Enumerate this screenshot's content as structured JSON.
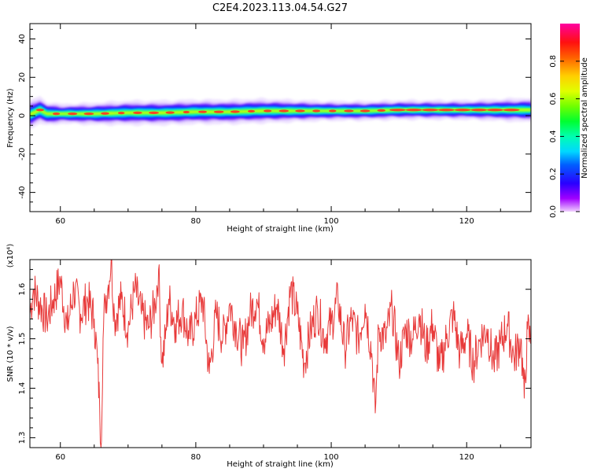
{
  "title": "C2E4.2023.113.04.54.G27",
  "chart_data": [
    {
      "type": "heatmap",
      "xlabel": "Height of straight line (km)",
      "ylabel": "Frequency (Hz)",
      "xlim": [
        55.5,
        129.5
      ],
      "ylim": [
        -50,
        48
      ],
      "xticks": [
        "60",
        "80",
        "100",
        "120"
      ],
      "yticks": [
        "40",
        "20",
        "0",
        "-20",
        "-40"
      ],
      "xtick_values": [
        60,
        80,
        100,
        120
      ],
      "ytick_values": [
        40,
        20,
        0,
        -20,
        -40
      ],
      "colorbar": {
        "label": "Normalized spectral amplitude",
        "range": [
          0,
          1
        ],
        "ticks": [
          "0.0",
          "0.2",
          "0.4",
          "0.6",
          "0.8"
        ],
        "tick_values": [
          0,
          0.2,
          0.4,
          0.6,
          0.8
        ]
      },
      "ridge_center": {
        "x": [
          55.5,
          57,
          58,
          59,
          60,
          65,
          70,
          75,
          80,
          85,
          90,
          95,
          100,
          105,
          110,
          115,
          120,
          125,
          129.5
        ],
        "y": [
          0.5,
          3,
          1,
          1,
          1,
          1,
          1.5,
          1.5,
          2,
          2,
          2.5,
          2.5,
          2.5,
          2.5,
          3,
          3,
          3,
          3,
          3
        ]
      },
      "ridge_halfwidth": {
        "x": [
          55.5,
          60,
          70,
          80,
          90,
          100,
          110,
          120,
          129.5
        ],
        "y": [
          3,
          2,
          2.5,
          2.5,
          2.5,
          2,
          2,
          2,
          2.5
        ]
      }
    },
    {
      "type": "line",
      "xlabel": "Height of straight line (km)",
      "ylabel": "SNR (10 * v/v)",
      "y_multiplier": "(x10⁴)",
      "xlim": [
        55.5,
        129.5
      ],
      "ylim": [
        1.28,
        1.66
      ],
      "xticks": [
        "60",
        "80",
        "100",
        "120"
      ],
      "yticks": [
        "1.3",
        "1.4",
        "1.5",
        "1.6"
      ],
      "xtick_values": [
        60,
        80,
        100,
        120
      ],
      "ytick_values": [
        1.3,
        1.4,
        1.5,
        1.6
      ],
      "line_color": "#e83a3a",
      "series": [
        {
          "x": [
            55.5,
            56,
            57,
            58,
            59,
            60,
            61,
            62,
            63,
            64,
            65,
            65.5,
            65.8,
            66,
            66.3,
            66.6,
            67,
            67.5,
            68,
            69,
            70,
            71,
            72,
            73,
            74,
            74.5,
            75,
            75.5,
            76,
            77,
            78,
            79,
            80,
            81,
            82,
            83,
            84,
            85,
            86,
            87,
            88,
            89,
            90,
            91,
            92,
            93,
            94,
            95,
            96,
            97,
            98,
            99,
            100,
            101,
            102,
            103,
            104,
            105,
            106,
            106.5,
            107,
            108,
            109,
            110,
            111,
            112,
            113,
            114,
            115,
            116,
            117,
            118,
            119,
            120,
            121,
            122,
            123,
            124,
            125,
            126,
            127,
            128,
            128.5,
            129,
            129.5
          ],
          "y": [
            1.55,
            1.6,
            1.57,
            1.54,
            1.58,
            1.62,
            1.52,
            1.6,
            1.55,
            1.58,
            1.54,
            1.45,
            1.36,
            1.28,
            1.5,
            1.58,
            1.6,
            1.66,
            1.54,
            1.58,
            1.52,
            1.6,
            1.55,
            1.52,
            1.57,
            1.64,
            1.45,
            1.5,
            1.58,
            1.53,
            1.56,
            1.5,
            1.54,
            1.58,
            1.43,
            1.55,
            1.5,
            1.57,
            1.52,
            1.48,
            1.55,
            1.58,
            1.5,
            1.53,
            1.57,
            1.48,
            1.6,
            1.55,
            1.45,
            1.52,
            1.56,
            1.5,
            1.53,
            1.58,
            1.48,
            1.54,
            1.5,
            1.57,
            1.47,
            1.35,
            1.52,
            1.5,
            1.56,
            1.45,
            1.52,
            1.5,
            1.55,
            1.48,
            1.53,
            1.44,
            1.5,
            1.55,
            1.47,
            1.51,
            1.45,
            1.5,
            1.52,
            1.45,
            1.49,
            1.53,
            1.46,
            1.5,
            1.38,
            1.52,
            1.49
          ]
        }
      ]
    }
  ]
}
